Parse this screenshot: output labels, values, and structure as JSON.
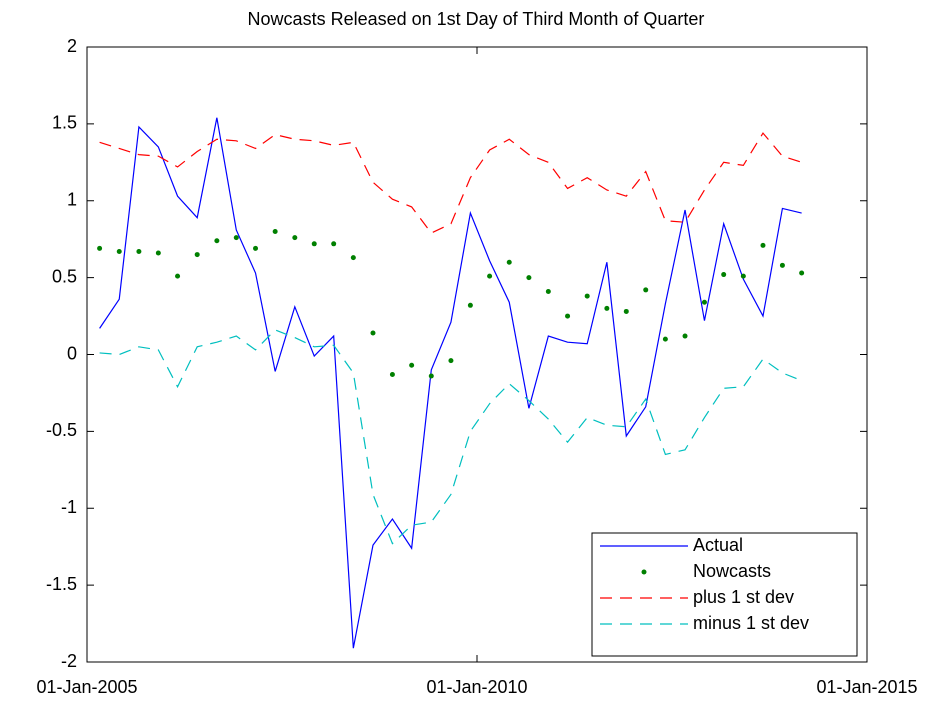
{
  "chart_data": {
    "type": "line",
    "title": "Nowcasts Released on 1st Day of Third Month of Quarter",
    "x": [
      "2005-03-01",
      "2005-06-01",
      "2005-09-01",
      "2005-12-01",
      "2006-03-01",
      "2006-06-01",
      "2006-09-01",
      "2006-12-01",
      "2007-03-01",
      "2007-06-01",
      "2007-09-01",
      "2007-12-01",
      "2008-03-01",
      "2008-06-01",
      "2008-09-01",
      "2008-12-01",
      "2009-03-01",
      "2009-06-01",
      "2009-09-01",
      "2009-12-01",
      "2010-03-01",
      "2010-06-01",
      "2010-09-01",
      "2010-12-01",
      "2011-03-01",
      "2011-06-01",
      "2011-09-01",
      "2011-12-01",
      "2012-03-01",
      "2012-06-01",
      "2012-09-01",
      "2012-12-01",
      "2013-03-01",
      "2013-06-01",
      "2013-09-01",
      "2013-12-01",
      "2014-03-01"
    ],
    "series": [
      {
        "name": "Actual",
        "color": "#0000ff",
        "linestyle": "solid",
        "values": [
          0.17,
          0.36,
          1.48,
          1.35,
          1.03,
          0.89,
          1.54,
          0.81,
          0.53,
          -0.11,
          0.31,
          -0.01,
          0.12,
          -1.91,
          -1.24,
          -1.07,
          -1.26,
          -0.1,
          0.21,
          0.92,
          0.61,
          0.34,
          -0.35,
          0.12,
          0.08,
          0.07,
          0.6,
          -0.53,
          -0.34,
          0.33,
          0.94,
          0.22,
          0.85,
          0.49,
          0.25,
          0.95,
          0.92
        ]
      },
      {
        "name": "Nowcasts",
        "color": "#008000",
        "linestyle": "dots",
        "values": [
          0.69,
          0.67,
          0.67,
          0.66,
          0.51,
          0.65,
          0.74,
          0.76,
          0.69,
          0.8,
          0.76,
          0.72,
          0.72,
          0.63,
          0.14,
          -0.13,
          -0.07,
          -0.14,
          -0.04,
          0.32,
          0.51,
          0.6,
          0.5,
          0.41,
          0.25,
          0.38,
          0.3,
          0.28,
          0.42,
          0.1,
          0.12,
          0.34,
          0.52,
          0.51,
          0.71,
          0.58,
          0.53
        ]
      },
      {
        "name": "plus 1 st dev",
        "color": "#ff0000",
        "linestyle": "dashed",
        "values": [
          1.38,
          1.34,
          1.3,
          1.29,
          1.22,
          1.32,
          1.4,
          1.39,
          1.34,
          1.43,
          1.4,
          1.39,
          1.36,
          1.38,
          1.12,
          1.01,
          0.96,
          0.79,
          0.85,
          1.15,
          1.33,
          1.4,
          1.3,
          1.25,
          1.08,
          1.15,
          1.07,
          1.03,
          1.19,
          0.87,
          0.86,
          1.07,
          1.25,
          1.23,
          1.44,
          1.29,
          1.25
        ]
      },
      {
        "name": "minus 1 st dev",
        "color": "#00bfbf",
        "linestyle": "dashed",
        "values": [
          0.01,
          0.0,
          0.05,
          0.03,
          -0.21,
          0.05,
          0.08,
          0.12,
          0.03,
          0.16,
          0.11,
          0.05,
          0.06,
          -0.12,
          -0.91,
          -1.23,
          -1.11,
          -1.09,
          -0.91,
          -0.5,
          -0.32,
          -0.19,
          -0.3,
          -0.42,
          -0.57,
          -0.41,
          -0.46,
          -0.47,
          -0.29,
          -0.65,
          -0.62,
          -0.41,
          -0.22,
          -0.21,
          -0.03,
          -0.12,
          -0.17
        ]
      }
    ],
    "xlim": [
      "2005-01-01",
      "2015-01-01"
    ],
    "xticks": [
      {
        "value": "2005-01-01",
        "label": "01-Jan-2005"
      },
      {
        "value": "2010-01-01",
        "label": "01-Jan-2010"
      },
      {
        "value": "2015-01-01",
        "label": "01-Jan-2015"
      }
    ],
    "ylim": [
      -2,
      2
    ],
    "yticks": [
      -2,
      -1.5,
      -1,
      -0.5,
      0,
      0.5,
      1,
      1.5,
      2
    ],
    "grid": false,
    "legend": "lower right"
  }
}
